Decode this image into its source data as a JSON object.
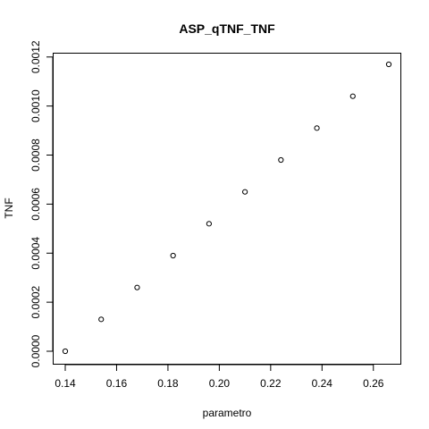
{
  "chart_data": {
    "type": "scatter",
    "title": "ASP_qTNF_TNF",
    "xlabel": "parametro",
    "ylabel": "TNF",
    "x": [
      0.14,
      0.154,
      0.168,
      0.182,
      0.196,
      0.21,
      0.224,
      0.238,
      0.252,
      0.266
    ],
    "y": [
      0.0,
      0.00013,
      0.00026,
      0.00039,
      0.00052,
      0.00065,
      0.00078,
      0.00091,
      0.00104,
      0.00117
    ],
    "xlim": [
      0.14,
      0.266
    ],
    "ylim": [
      0.0,
      0.00117
    ],
    "x_ticks": [
      0.14,
      0.16,
      0.18,
      0.2,
      0.22,
      0.24,
      0.26
    ],
    "x_tick_labels": [
      "0.14",
      "0.16",
      "0.18",
      "0.20",
      "0.22",
      "0.24",
      "0.26"
    ],
    "y_ticks": [
      0.0,
      0.0002,
      0.0004,
      0.0006,
      0.0008,
      0.001,
      0.0012
    ],
    "y_tick_labels": [
      "0.0000",
      "0.0002",
      "0.0004",
      "0.0006",
      "0.0008",
      "0.0010",
      "0.0012"
    ],
    "grid": false,
    "legend": "none",
    "marker": "open-circle",
    "color": "#000000"
  }
}
